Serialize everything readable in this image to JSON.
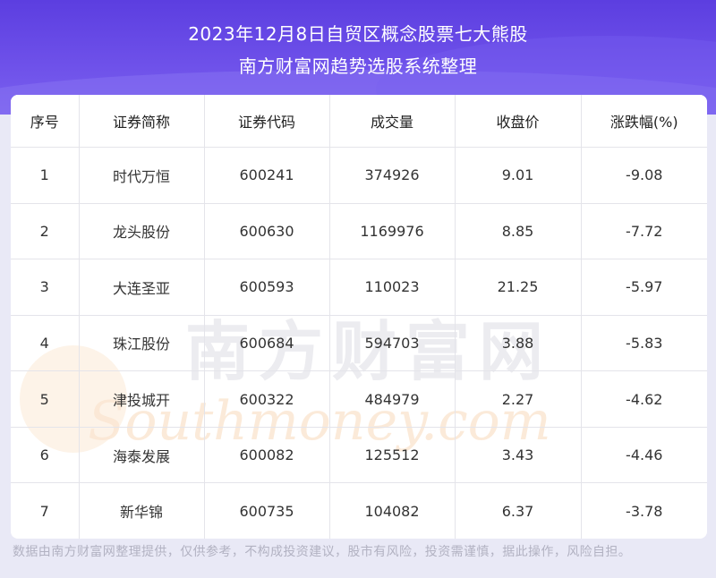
{
  "header": {
    "title_line1": "2023年12月8日自贸区概念股票七大熊股",
    "title_line2": "南方财富网趋势选股系统整理"
  },
  "table": {
    "columns": [
      "序号",
      "证券简称",
      "证券代码",
      "成交量",
      "收盘价",
      "涨跌幅(%)"
    ],
    "rows": [
      [
        "1",
        "时代万恒",
        "600241",
        "374926",
        "9.01",
        "-9.08"
      ],
      [
        "2",
        "龙头股份",
        "600630",
        "1169976",
        "8.85",
        "-7.72"
      ],
      [
        "3",
        "大连圣亚",
        "600593",
        "110023",
        "21.25",
        "-5.97"
      ],
      [
        "4",
        "珠江股份",
        "600684",
        "594703",
        "3.88",
        "-5.83"
      ],
      [
        "5",
        "津投城开",
        "600322",
        "484979",
        "2.27",
        "-4.62"
      ],
      [
        "6",
        "海泰发展",
        "600082",
        "125512",
        "3.43",
        "-4.46"
      ],
      [
        "7",
        "新华锦",
        "600735",
        "104082",
        "6.37",
        "-3.78"
      ]
    ]
  },
  "watermark": {
    "cn_text": "南方财富网",
    "en_text": "Southmoney.com"
  },
  "footer": {
    "disclaimer": "数据由南方财富网整理提供，仅供参考，不构成投资建议，股市有风险，投资需谨慎，据此操作，风险自担。"
  },
  "colors": {
    "banner": "#5c3ee0",
    "background": "#e9e9f6",
    "card": "#ffffff",
    "grid": "#e4e4ea",
    "text": "#333333",
    "footer_text": "#b2b2c2"
  }
}
